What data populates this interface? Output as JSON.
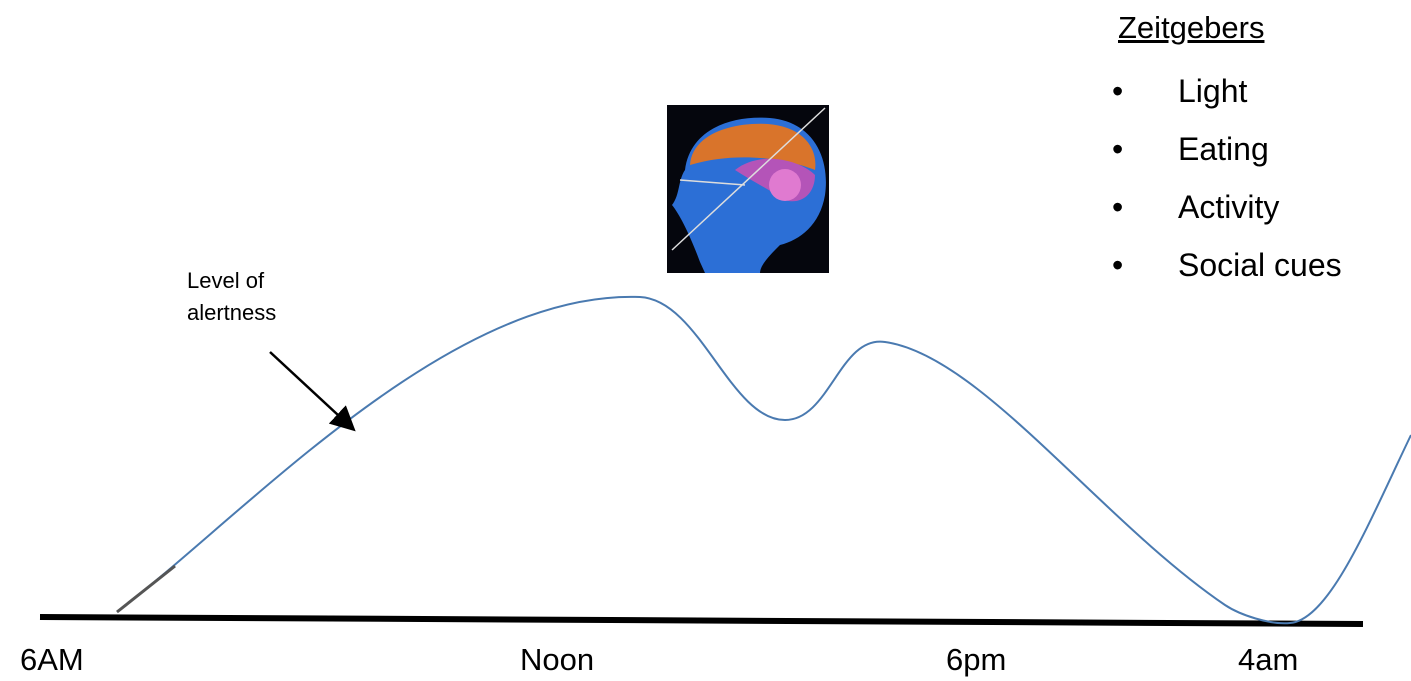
{
  "legend": {
    "title": "Zeitgebers",
    "items": [
      "Light",
      "Eating",
      "Activity",
      "Social cues"
    ]
  },
  "annotation": "Level of alertness",
  "axis_labels": [
    "6AM",
    "Noon",
    "6pm",
    "4am"
  ]
}
